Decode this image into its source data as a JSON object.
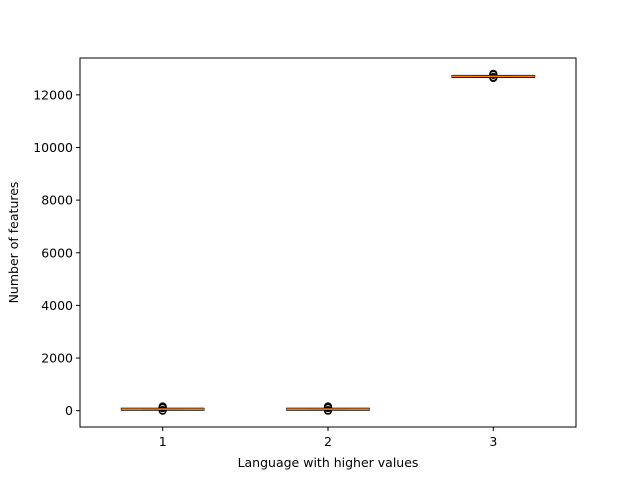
{
  "chart_data": {
    "type": "boxplot",
    "title": "",
    "xlabel": "Language with higher values",
    "ylabel": "Number of features",
    "categories": [
      "1",
      "2",
      "3"
    ],
    "x_positions": [
      1,
      2,
      3
    ],
    "xlim": [
      0.5,
      3.5
    ],
    "ylim": [
      -620,
      13400
    ],
    "yticks": [
      0,
      2000,
      4000,
      6000,
      8000,
      10000,
      12000
    ],
    "ytick_labels": [
      "0",
      "2000",
      "4000",
      "6000",
      "8000",
      "10000",
      "12000"
    ],
    "grid": false,
    "legend": "none",
    "boxes": [
      {
        "category": "1",
        "q1": 45,
        "median": 60,
        "q3": 75,
        "whisker_low": 40,
        "whisker_high": 80,
        "fliers": [
          0,
          20,
          100,
          130,
          160
        ]
      },
      {
        "category": "2",
        "q1": 45,
        "median": 60,
        "q3": 75,
        "whisker_low": 40,
        "whisker_high": 80,
        "fliers": [
          0,
          20,
          100,
          130,
          160
        ]
      },
      {
        "category": "3",
        "q1": 12680,
        "median": 12700,
        "q3": 12720,
        "whisker_low": 12670,
        "whisker_high": 12730,
        "fliers": [
          12640,
          12680,
          12760,
          12800
        ]
      }
    ],
    "colors": {
      "median": "#ff7f0e",
      "box": "#000000",
      "flier": "#000000"
    }
  }
}
